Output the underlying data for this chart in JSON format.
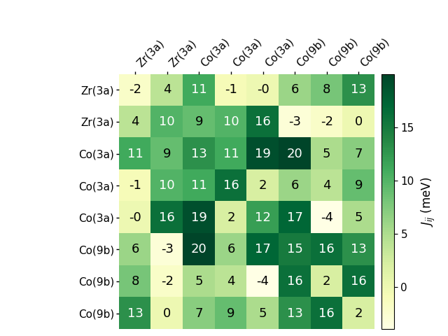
{
  "matrix": [
    [
      -2,
      4,
      11,
      -1,
      0,
      6,
      8,
      13
    ],
    [
      4,
      10,
      9,
      10,
      16,
      -3,
      -2,
      0
    ],
    [
      11,
      9,
      13,
      11,
      19,
      20,
      5,
      7
    ],
    [
      -1,
      10,
      11,
      16,
      2,
      6,
      4,
      9
    ],
    [
      0,
      16,
      19,
      2,
      12,
      17,
      -4,
      5
    ],
    [
      6,
      -3,
      20,
      6,
      17,
      15,
      16,
      13
    ],
    [
      8,
      -2,
      5,
      4,
      -4,
      16,
      2,
      16
    ],
    [
      13,
      0,
      7,
      9,
      5,
      13,
      16,
      2
    ]
  ],
  "text_labels": [
    [
      "-2",
      "4",
      "11",
      "-1",
      "-0",
      "6",
      "8",
      "13"
    ],
    [
      "4",
      "10",
      "9",
      "10",
      "16",
      "-3",
      "-2",
      "0"
    ],
    [
      "11",
      "9",
      "13",
      "11",
      "19",
      "20",
      "5",
      "7"
    ],
    [
      "-1",
      "10",
      "11",
      "16",
      "2",
      "6",
      "4",
      "9"
    ],
    [
      "-0",
      "16",
      "19",
      "2",
      "12",
      "17",
      "-4",
      "5"
    ],
    [
      "6",
      "-3",
      "20",
      "6",
      "17",
      "15",
      "16",
      "13"
    ],
    [
      "8",
      "-2",
      "5",
      "4",
      "-4",
      "16",
      "2",
      "16"
    ],
    [
      "13",
      "0",
      "7",
      "9",
      "5",
      "13",
      "16",
      "2"
    ]
  ],
  "row_labels": [
    "Zr(3a)",
    "Zr(3a)",
    "Co(3a)",
    "Co(3a)",
    "Co(3a)",
    "Co(9b)",
    "Co(9b)",
    "Co(9b)"
  ],
  "col_labels": [
    "Zr(3a)",
    "Zr(3a)",
    "Co(3a)",
    "Co(3a)",
    "Co(3a)",
    "Co(9b)",
    "Co(9b)",
    "Co(9b)"
  ],
  "cmap": "YlGn",
  "vmin": -4,
  "vmax": 20,
  "colorbar_label": "$J_{ij}$ (meV)",
  "colorbar_ticks": [
    0,
    5,
    10,
    15
  ],
  "text_color_threshold": 10,
  "fig_width": 6.4,
  "fig_height": 4.8,
  "dpi": 100,
  "cell_fontsize": 13,
  "tick_fontsize": 11,
  "cbar_fontsize": 12
}
